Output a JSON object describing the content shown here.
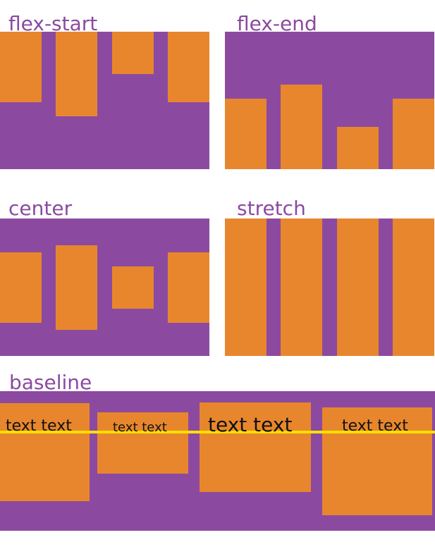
{
  "panels": {
    "flex_start": {
      "title": "flex-start"
    },
    "flex_end": {
      "title": "flex-end"
    },
    "center": {
      "title": "center"
    },
    "stretch": {
      "title": "stretch"
    },
    "baseline": {
      "title": "baseline",
      "items": [
        {
          "label": "text text"
        },
        {
          "label": "text text"
        },
        {
          "label": "text text"
        },
        {
          "label": "text text"
        }
      ]
    }
  },
  "colors": {
    "container_purple": "#8b4aa0",
    "item_orange": "#e8862d",
    "baseline_line_yellow": "#ffe000",
    "title_purple": "#8b4aa0",
    "item_text_black": "#111111",
    "background_white": "#ffffff"
  }
}
